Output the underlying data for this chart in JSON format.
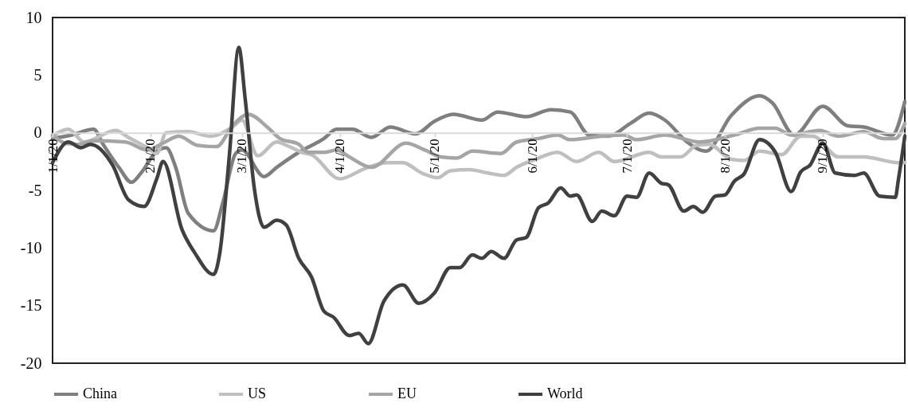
{
  "chart_data": {
    "type": "line",
    "xlim": [
      "2020-01-01",
      "2020-09-27"
    ],
    "ylim": [
      -20,
      10
    ],
    "yticks": [
      -20,
      -15,
      -10,
      -5,
      0,
      5,
      10
    ],
    "xticks": [
      {
        "value": "2020-01-01",
        "label": "1/1/20"
      },
      {
        "value": "2020-02-01",
        "label": "2/1/20"
      },
      {
        "value": "2020-03-01",
        "label": "3/1/20"
      },
      {
        "value": "2020-04-01",
        "label": "4/1/20"
      },
      {
        "value": "2020-05-01",
        "label": "5/1/20"
      },
      {
        "value": "2020-06-01",
        "label": "6/1/20"
      },
      {
        "value": "2020-07-01",
        "label": "7/1/20"
      },
      {
        "value": "2020-08-01",
        "label": "8/1/20"
      },
      {
        "value": "2020-09-01",
        "label": "9/1/20"
      }
    ],
    "legend": "bottom",
    "line_style": "solid",
    "marker": "none",
    "series": [
      {
        "name": "China",
        "color": "#7f7f7f",
        "x": [
          "2020-01-01",
          "2020-01-07",
          "2020-01-14",
          "2020-01-17",
          "2020-01-22",
          "2020-01-26",
          "2020-01-29",
          "2020-02-03",
          "2020-02-06",
          "2020-02-09",
          "2020-02-13",
          "2020-02-21",
          "2020-02-24",
          "2020-02-28",
          "2020-03-01",
          "2020-03-08",
          "2020-03-12",
          "2020-03-19",
          "2020-03-27",
          "2020-03-31",
          "2020-04-05",
          "2020-04-11",
          "2020-04-17",
          "2020-04-25",
          "2020-05-01",
          "2020-05-07",
          "2020-05-16",
          "2020-05-21",
          "2020-05-30",
          "2020-06-07",
          "2020-06-13",
          "2020-06-19",
          "2020-06-25",
          "2020-07-02",
          "2020-07-08",
          "2020-07-13",
          "2020-07-20",
          "2020-07-26",
          "2020-08-03",
          "2020-08-12",
          "2020-08-16",
          "2020-08-23",
          "2020-09-01",
          "2020-09-09",
          "2020-09-14",
          "2020-09-23",
          "2020-09-27"
        ],
        "values": [
          -0.5,
          -0.2,
          0.3,
          -1.0,
          -3.0,
          -4.3,
          -3.5,
          -1.6,
          -1.3,
          -3.0,
          -7.0,
          -8.5,
          -6.0,
          -1.8,
          -1.5,
          -3.8,
          -3.0,
          -1.7,
          -0.5,
          0.3,
          0.3,
          -0.4,
          0.5,
          -0.1,
          1.0,
          1.6,
          1.1,
          1.8,
          1.4,
          2.0,
          1.8,
          -0.2,
          -0.3,
          0.8,
          1.7,
          1.1,
          -0.8,
          -1.6,
          1.5,
          3.2,
          2.6,
          -0.2,
          2.3,
          0.6,
          0.5,
          -0.2,
          2.7
        ]
      },
      {
        "name": "US",
        "color": "#bfbfbf",
        "x": [
          "2020-01-01",
          "2020-01-06",
          "2020-01-11",
          "2020-01-21",
          "2020-01-25",
          "2020-01-31",
          "2020-02-03",
          "2020-02-06",
          "2020-02-13",
          "2020-02-20",
          "2020-02-27",
          "2020-03-01",
          "2020-03-06",
          "2020-03-12",
          "2020-03-16",
          "2020-03-20",
          "2020-03-23",
          "2020-04-01",
          "2020-04-09",
          "2020-04-16",
          "2020-04-21",
          "2020-04-27",
          "2020-05-02",
          "2020-05-06",
          "2020-05-12",
          "2020-05-18",
          "2020-05-23",
          "2020-05-27",
          "2020-06-02",
          "2020-06-09",
          "2020-06-15",
          "2020-06-22",
          "2020-06-27",
          "2020-07-08",
          "2020-07-12",
          "2020-07-18",
          "2020-07-23",
          "2020-07-27",
          "2020-08-03",
          "2020-08-07",
          "2020-08-12",
          "2020-08-19",
          "2020-08-25",
          "2020-08-29",
          "2020-09-06",
          "2020-09-14",
          "2020-09-25",
          "2020-09-27"
        ],
        "values": [
          -0.3,
          0.3,
          -0.8,
          0.2,
          -0.4,
          -1.3,
          -1.8,
          0.0,
          0.1,
          -0.3,
          0.5,
          1.1,
          -2.0,
          -0.8,
          -1.2,
          -1.7,
          -1.9,
          -4.0,
          -3.1,
          -2.6,
          -2.6,
          -3.5,
          -3.9,
          -3.3,
          -3.2,
          -3.5,
          -3.7,
          -3.0,
          -2.3,
          -1.7,
          -2.5,
          -1.7,
          -2.5,
          -1.7,
          -2.1,
          -2.1,
          -1.1,
          -1.0,
          -2.3,
          -2.4,
          -1.6,
          -1.9,
          -0.3,
          -0.3,
          -2.1,
          -2.1,
          -2.6,
          -2.6
        ]
      },
      {
        "name": "EU",
        "color": "#a5a5a5",
        "x": [
          "2020-01-01",
          "2020-01-05",
          "2020-01-09",
          "2020-01-14",
          "2020-01-24",
          "2020-01-31",
          "2020-02-05",
          "2020-02-10",
          "2020-02-16",
          "2020-02-22",
          "2020-02-27",
          "2020-03-03",
          "2020-03-09",
          "2020-03-13",
          "2020-03-19",
          "2020-03-22",
          "2020-03-27",
          "2020-03-31",
          "2020-04-04",
          "2020-04-11",
          "2020-04-22",
          "2020-04-28",
          "2020-05-03",
          "2020-05-08",
          "2020-05-13",
          "2020-05-22",
          "2020-05-27",
          "2020-06-03",
          "2020-06-09",
          "2020-06-13",
          "2020-06-23",
          "2020-06-30",
          "2020-07-04",
          "2020-07-13",
          "2020-07-24",
          "2020-08-04",
          "2020-08-12",
          "2020-08-17",
          "2020-08-22",
          "2020-08-31",
          "2020-09-06",
          "2020-09-14",
          "2020-09-20",
          "2020-09-24",
          "2020-09-27"
        ],
        "values": [
          -0.2,
          -0.9,
          -1.0,
          -0.7,
          -0.8,
          -1.5,
          -0.9,
          -0.3,
          -1.1,
          -1.2,
          0.6,
          1.6,
          0.5,
          -0.5,
          -1.0,
          -1.7,
          -1.7,
          -1.5,
          -2.1,
          -3.0,
          -0.9,
          -1.5,
          -2.1,
          -2.2,
          -1.6,
          -1.8,
          -0.8,
          -0.5,
          -0.2,
          -0.6,
          -0.3,
          -0.2,
          -0.6,
          -0.2,
          -0.8,
          -0.2,
          0.4,
          0.4,
          -0.2,
          0.2,
          -0.3,
          0.1,
          -0.5,
          -0.5,
          0.8
        ]
      },
      {
        "name": "World",
        "color": "#404040",
        "x": [
          "2020-01-01",
          "2020-01-06",
          "2020-01-10",
          "2020-01-13",
          "2020-01-20",
          "2020-01-25",
          "2020-01-30",
          "2020-02-03",
          "2020-02-05",
          "2020-02-11",
          "2020-02-15",
          "2020-02-21",
          "2020-02-23",
          "2020-02-26",
          "2020-02-29",
          "2020-03-02",
          "2020-03-05",
          "2020-03-08",
          "2020-03-12",
          "2020-03-15",
          "2020-03-19",
          "2020-03-23",
          "2020-03-27",
          "2020-03-30",
          "2020-04-04",
          "2020-04-07",
          "2020-04-10",
          "2020-04-15",
          "2020-04-21",
          "2020-04-26",
          "2020-05-01",
          "2020-05-06",
          "2020-05-09",
          "2020-05-13",
          "2020-05-16",
          "2020-05-19",
          "2020-05-23",
          "2020-05-27",
          "2020-05-30",
          "2020-06-03",
          "2020-06-06",
          "2020-06-10",
          "2020-06-13",
          "2020-06-15",
          "2020-06-20",
          "2020-06-23",
          "2020-06-27",
          "2020-07-01",
          "2020-07-04",
          "2020-07-08",
          "2020-07-12",
          "2020-07-14",
          "2020-07-19",
          "2020-07-22",
          "2020-07-25",
          "2020-07-29",
          "2020-08-01",
          "2020-08-04",
          "2020-08-07",
          "2020-08-12",
          "2020-08-17",
          "2020-08-22",
          "2020-08-25",
          "2020-08-28",
          "2020-09-01",
          "2020-09-05",
          "2020-09-11",
          "2020-09-14",
          "2020-09-19",
          "2020-09-24",
          "2020-09-25",
          "2020-09-27"
        ],
        "values": [
          -2.6,
          -0.8,
          -1.3,
          -1.0,
          -2.8,
          -5.8,
          -6.4,
          -4.0,
          -2.5,
          -8.4,
          -10.4,
          -12.3,
          -10.4,
          -2.0,
          7.4,
          3.0,
          -5.0,
          -8.2,
          -7.6,
          -8.0,
          -10.9,
          -12.5,
          -15.5,
          -16.0,
          -17.6,
          -17.4,
          -18.3,
          -14.6,
          -13.2,
          -14.8,
          -13.9,
          -11.7,
          -11.7,
          -10.6,
          -10.9,
          -10.3,
          -10.9,
          -9.3,
          -9.1,
          -6.5,
          -6.1,
          -4.8,
          -5.5,
          -5.4,
          -7.7,
          -6.8,
          -7.2,
          -5.5,
          -5.6,
          -3.5,
          -4.4,
          -4.5,
          -6.8,
          -6.4,
          -6.9,
          -5.5,
          -5.4,
          -4.2,
          -3.6,
          -0.6,
          -1.7,
          -5.1,
          -3.4,
          -2.8,
          -0.9,
          -3.5,
          -3.7,
          -3.5,
          -5.5,
          -5.6,
          -4.0,
          -0.3
        ]
      }
    ]
  }
}
